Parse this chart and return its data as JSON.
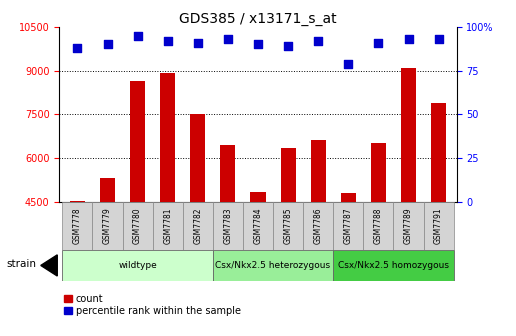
{
  "title": "GDS385 / x13171_s_at",
  "samples": [
    "GSM7778",
    "GSM7779",
    "GSM7780",
    "GSM7781",
    "GSM7782",
    "GSM7783",
    "GSM7784",
    "GSM7785",
    "GSM7786",
    "GSM7787",
    "GSM7788",
    "GSM7789",
    "GSM7791"
  ],
  "counts": [
    4510,
    5320,
    8650,
    8900,
    7500,
    6450,
    4830,
    6350,
    6600,
    4800,
    6500,
    9100,
    7900
  ],
  "percentiles": [
    88,
    90,
    95,
    92,
    91,
    93,
    90,
    89,
    92,
    79,
    91,
    93,
    93
  ],
  "ylim_left": [
    4500,
    10500
  ],
  "ylim_right": [
    0,
    100
  ],
  "yticks_left": [
    4500,
    6000,
    7500,
    9000,
    10500
  ],
  "yticks_right": [
    0,
    25,
    50,
    75,
    100
  ],
  "bar_color": "#cc0000",
  "scatter_color": "#0000cc",
  "grid_color": "#000000",
  "groups": [
    {
      "label": "wildtype",
      "start": 0,
      "end": 5,
      "color": "#ccffcc"
    },
    {
      "label": "Csx/Nkx2.5 heterozygous",
      "start": 5,
      "end": 9,
      "color": "#99ee99"
    },
    {
      "label": "Csx/Nkx2.5 homozygous",
      "start": 9,
      "end": 13,
      "color": "#44cc44"
    }
  ],
  "legend_count_label": "count",
  "legend_pct_label": "percentile rank within the sample",
  "strain_label": "strain",
  "bar_width": 0.5,
  "scatter_size": 35,
  "scatter_marker": "s"
}
